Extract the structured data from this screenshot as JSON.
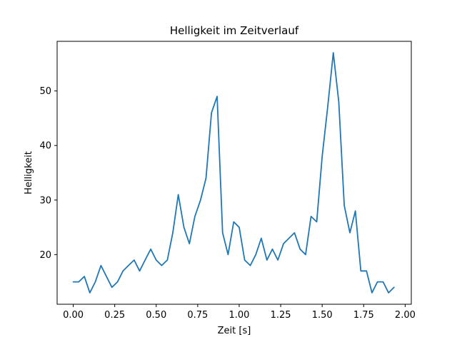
{
  "chart_data": {
    "type": "line",
    "title": "Helligkeit im Zeitverlauf",
    "xlabel": "Zeit [s]",
    "ylabel": "Helligkeit",
    "xlim": [
      -0.097,
      2.037
    ],
    "ylim": [
      10.9,
      59.1
    ],
    "xticks": [
      0.0,
      0.25,
      0.5,
      0.75,
      1.0,
      1.25,
      1.5,
      1.75,
      2.0
    ],
    "xtick_labels": [
      "0.00",
      "0.25",
      "0.50",
      "0.75",
      "1.00",
      "1.25",
      "1.50",
      "1.75",
      "2.00"
    ],
    "yticks": [
      20,
      30,
      40,
      50
    ],
    "ytick_labels": [
      "20",
      "30",
      "40",
      "50"
    ],
    "grid": false,
    "series": [
      {
        "color": "#1f77b4",
        "x": [
          0.0,
          0.033,
          0.067,
          0.1,
          0.133,
          0.167,
          0.2,
          0.233,
          0.267,
          0.3,
          0.333,
          0.367,
          0.4,
          0.433,
          0.467,
          0.5,
          0.533,
          0.567,
          0.6,
          0.633,
          0.667,
          0.7,
          0.733,
          0.767,
          0.8,
          0.833,
          0.867,
          0.9,
          0.933,
          0.967,
          1.0,
          1.033,
          1.067,
          1.1,
          1.133,
          1.167,
          1.2,
          1.233,
          1.267,
          1.3,
          1.333,
          1.367,
          1.4,
          1.433,
          1.467,
          1.5,
          1.533,
          1.567,
          1.6,
          1.633,
          1.667,
          1.7,
          1.733,
          1.767,
          1.8,
          1.833,
          1.867,
          1.9,
          1.933
        ],
        "y": [
          15,
          15,
          16,
          13,
          15,
          18,
          16,
          14,
          15,
          17,
          18,
          19,
          17,
          19,
          21,
          19,
          18,
          19,
          24,
          31,
          25,
          22,
          27,
          30,
          34,
          46,
          49,
          24,
          20,
          26,
          25,
          19,
          18,
          20,
          23,
          19,
          21,
          19,
          22,
          23,
          24,
          21,
          20,
          27,
          26,
          38,
          47,
          57,
          48,
          29,
          24,
          28,
          17,
          17,
          13,
          15,
          15,
          13,
          14
        ]
      }
    ]
  }
}
